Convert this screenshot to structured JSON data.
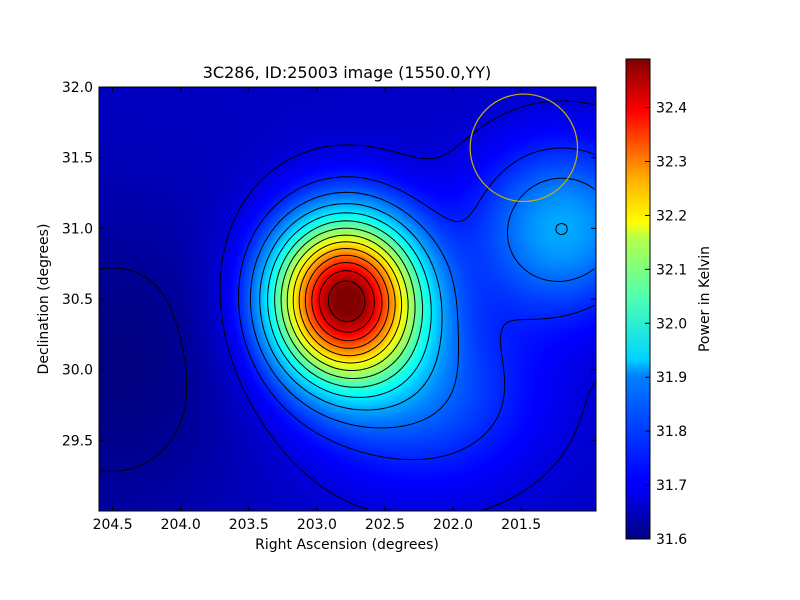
{
  "chart_data": {
    "type": "heatmap",
    "title": "3C286, ID:25003 image (1550.0,YY)",
    "xlabel": "Right Ascension (degrees)",
    "ylabel": "Declination (degrees)",
    "colorbar_label": "Power in Kelvin",
    "xlim": [
      204.6,
      200.95
    ],
    "ylim": [
      29.0,
      32.0
    ],
    "x_ticks": [
      204.5,
      204.0,
      203.5,
      203.0,
      202.5,
      202.0,
      201.5
    ],
    "x_tick_labels": [
      "204.5",
      "204.0",
      "203.5",
      "203.0",
      "202.5",
      "202.0",
      "201.5"
    ],
    "y_ticks": [
      29.5,
      30.0,
      30.5,
      31.0,
      31.5,
      32.0
    ],
    "y_tick_labels": [
      "29.5",
      "30.0",
      "30.5",
      "31.0",
      "31.5",
      "32.0"
    ],
    "colorbar_range": [
      31.6,
      32.49
    ],
    "colorbar_ticks": [
      31.6,
      31.7,
      31.8,
      31.9,
      32.0,
      32.1,
      32.2,
      32.3,
      32.4
    ],
    "colorbar_tick_labels": [
      "31.6",
      "31.7",
      "31.8",
      "31.9",
      "32.0",
      "32.1",
      "32.2",
      "32.3",
      "32.4"
    ],
    "colormap": "jet",
    "contour_color": "#000000",
    "beam_circle": {
      "ra": 201.48,
      "dec": 31.57,
      "radius_deg": 0.38,
      "color": "#c8b400"
    },
    "sources": [
      {
        "ra": 202.79,
        "dec": 30.5,
        "peak_k": 32.49,
        "sigma_ra": 0.38,
        "sigma_dec": 0.4
      },
      {
        "ra": 201.2,
        "dec": 31.0,
        "peak_k": 31.86,
        "sigma_ra": 0.45,
        "sigma_dec": 0.42
      },
      {
        "ra": 202.2,
        "dec": 29.8,
        "peak_k": 31.78,
        "sigma_ra": 0.6,
        "sigma_dec": 0.45
      }
    ],
    "background": {
      "base_k": 31.66,
      "low_region_ra": 204.5,
      "low_region_dec": 30.0,
      "low_k": 31.6
    }
  }
}
